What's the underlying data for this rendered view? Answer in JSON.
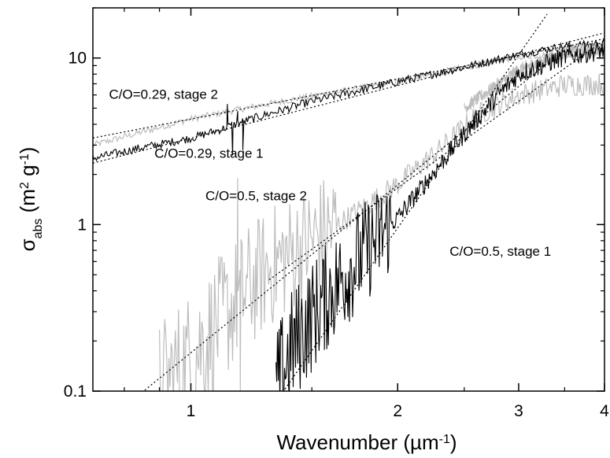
{
  "chart_data": {
    "type": "line",
    "x_scale": "log",
    "y_scale": "log",
    "xlim": [
      0.72,
      4.0
    ],
    "ylim": [
      0.1,
      20
    ],
    "grid": false,
    "legend": "none",
    "xlabel": {
      "base": "Wavenumber (",
      "unit": "µm",
      "sup": "-1",
      "close": ")"
    },
    "ylabel": {
      "symbol": "σ",
      "sub": "abs",
      "open": " (m",
      "sup1": "2",
      "mid": " g",
      "sup2": "-1",
      "close": ")"
    },
    "x_ticks": [
      {
        "value": 1,
        "label": "1"
      },
      {
        "value": 2,
        "label": "2"
      },
      {
        "value": 3,
        "label": "3"
      },
      {
        "value": 4,
        "label": "4"
      }
    ],
    "y_ticks": [
      {
        "value": 0.1,
        "label": "0.1"
      },
      {
        "value": 1,
        "label": "1"
      },
      {
        "value": 10,
        "label": "10"
      }
    ],
    "colors": {
      "black_series": "#000000",
      "gray_series": "#bdbdbd",
      "fit_line": "#000000"
    },
    "series": [
      {
        "color": "gray",
        "noise": 0.02,
        "x": [
          0.72,
          0.85,
          1.0,
          1.2,
          1.5,
          2.0,
          2.5,
          3.0,
          3.5,
          4.0
        ],
        "y": [
          3.0,
          3.6,
          4.3,
          5.0,
          5.9,
          7.2,
          8.8,
          10.2,
          10.6,
          10.8
        ]
      },
      {
        "color": "black",
        "noise": 0.025,
        "spikes": [
          [
            1.13,
            5.3
          ],
          [
            1.15,
            2.6
          ],
          [
            1.17,
            4.8
          ],
          [
            1.19,
            2.8
          ]
        ],
        "x": [
          0.72,
          0.85,
          1.0,
          1.1,
          1.2,
          1.5,
          2.0,
          2.5,
          3.0,
          3.5,
          4.0
        ],
        "y": [
          2.5,
          2.9,
          3.3,
          3.7,
          4.2,
          5.5,
          7.2,
          8.8,
          10.5,
          11.8,
          12.2
        ]
      },
      {
        "color": "gray",
        "noise": 0.07,
        "noise_low": 0.35,
        "spikes": [
          [
            1.17,
            1.9
          ],
          [
            1.18,
            0.1
          ]
        ],
        "x": [
          0.9,
          1.0,
          1.1,
          1.2,
          1.3,
          1.5,
          1.8,
          2.0,
          2.3,
          2.6,
          3.0,
          3.5,
          4.0
        ],
        "y": [
          0.1,
          0.16,
          0.26,
          0.4,
          0.55,
          0.8,
          1.3,
          1.75,
          2.8,
          4.5,
          6.0,
          6.9,
          7.0
        ]
      },
      {
        "color": "gray",
        "noise": 0.04,
        "x": [
          2.5,
          3.0,
          3.5,
          4.0
        ],
        "y": [
          5.0,
          8.5,
          10.8,
          11.5
        ]
      },
      {
        "color": "black",
        "noise": 0.06,
        "noise_low": 0.3,
        "x": [
          1.33,
          1.4,
          1.5,
          1.6,
          1.8,
          2.0,
          2.2,
          2.5,
          2.8,
          3.0,
          3.5,
          4.0
        ],
        "y": [
          0.1,
          0.18,
          0.28,
          0.4,
          0.7,
          1.1,
          1.8,
          3.5,
          6.0,
          8.0,
          10.2,
          11.2
        ]
      }
    ],
    "power_law_fits": [
      {
        "a": 4.3,
        "b": 0.8,
        "x_from": 0.72,
        "x_to": 4.0
      },
      {
        "a": 3.3,
        "b": 1.05,
        "x_from": 0.72,
        "x_to": 4.0
      },
      {
        "a": 0.17,
        "b": 3.35,
        "x_from": 0.72,
        "x_to": 3.3
      },
      {
        "a": 0.016,
        "b": 5.9,
        "x_from": 1.35,
        "x_to": 3.3
      },
      {
        "a": 0.215,
        "b": 2.95,
        "x_from": 1.3,
        "x_to": 4.0
      }
    ],
    "annotations": [
      {
        "text": "C/O=0.29, stage 2",
        "x": 0.76,
        "y": 5.7
      },
      {
        "text": "C/O=0.29, stage 1",
        "x": 0.885,
        "y": 2.52
      },
      {
        "text": "C/O=0.5, stage 2",
        "x": 1.05,
        "y": 1.4
      },
      {
        "text": "C/O=0.5, stage 1",
        "x": 2.38,
        "y": 0.65
      }
    ]
  }
}
